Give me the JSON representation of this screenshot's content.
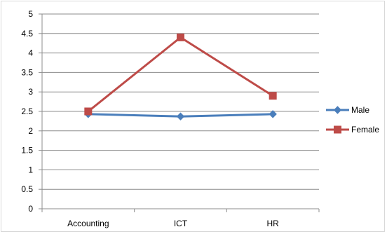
{
  "chart_data": {
    "type": "line",
    "categories": [
      "Accounting",
      "ICT",
      "HR"
    ],
    "series": [
      {
        "name": "Male",
        "values": [
          2.43,
          2.37,
          2.43
        ],
        "color": "#4a7ebb",
        "marker": "diamond"
      },
      {
        "name": "Female",
        "values": [
          2.5,
          4.4,
          2.9
        ],
        "color": "#be4b48",
        "marker": "square"
      }
    ],
    "ylim": [
      0,
      5
    ],
    "yticks": [
      "0",
      "0.5",
      "1",
      "1.5",
      "2",
      "2.5",
      "3",
      "3.5",
      "4",
      "4.5",
      "5"
    ],
    "grid": true,
    "legend": "right",
    "title": "",
    "xlabel": "",
    "ylabel": ""
  }
}
